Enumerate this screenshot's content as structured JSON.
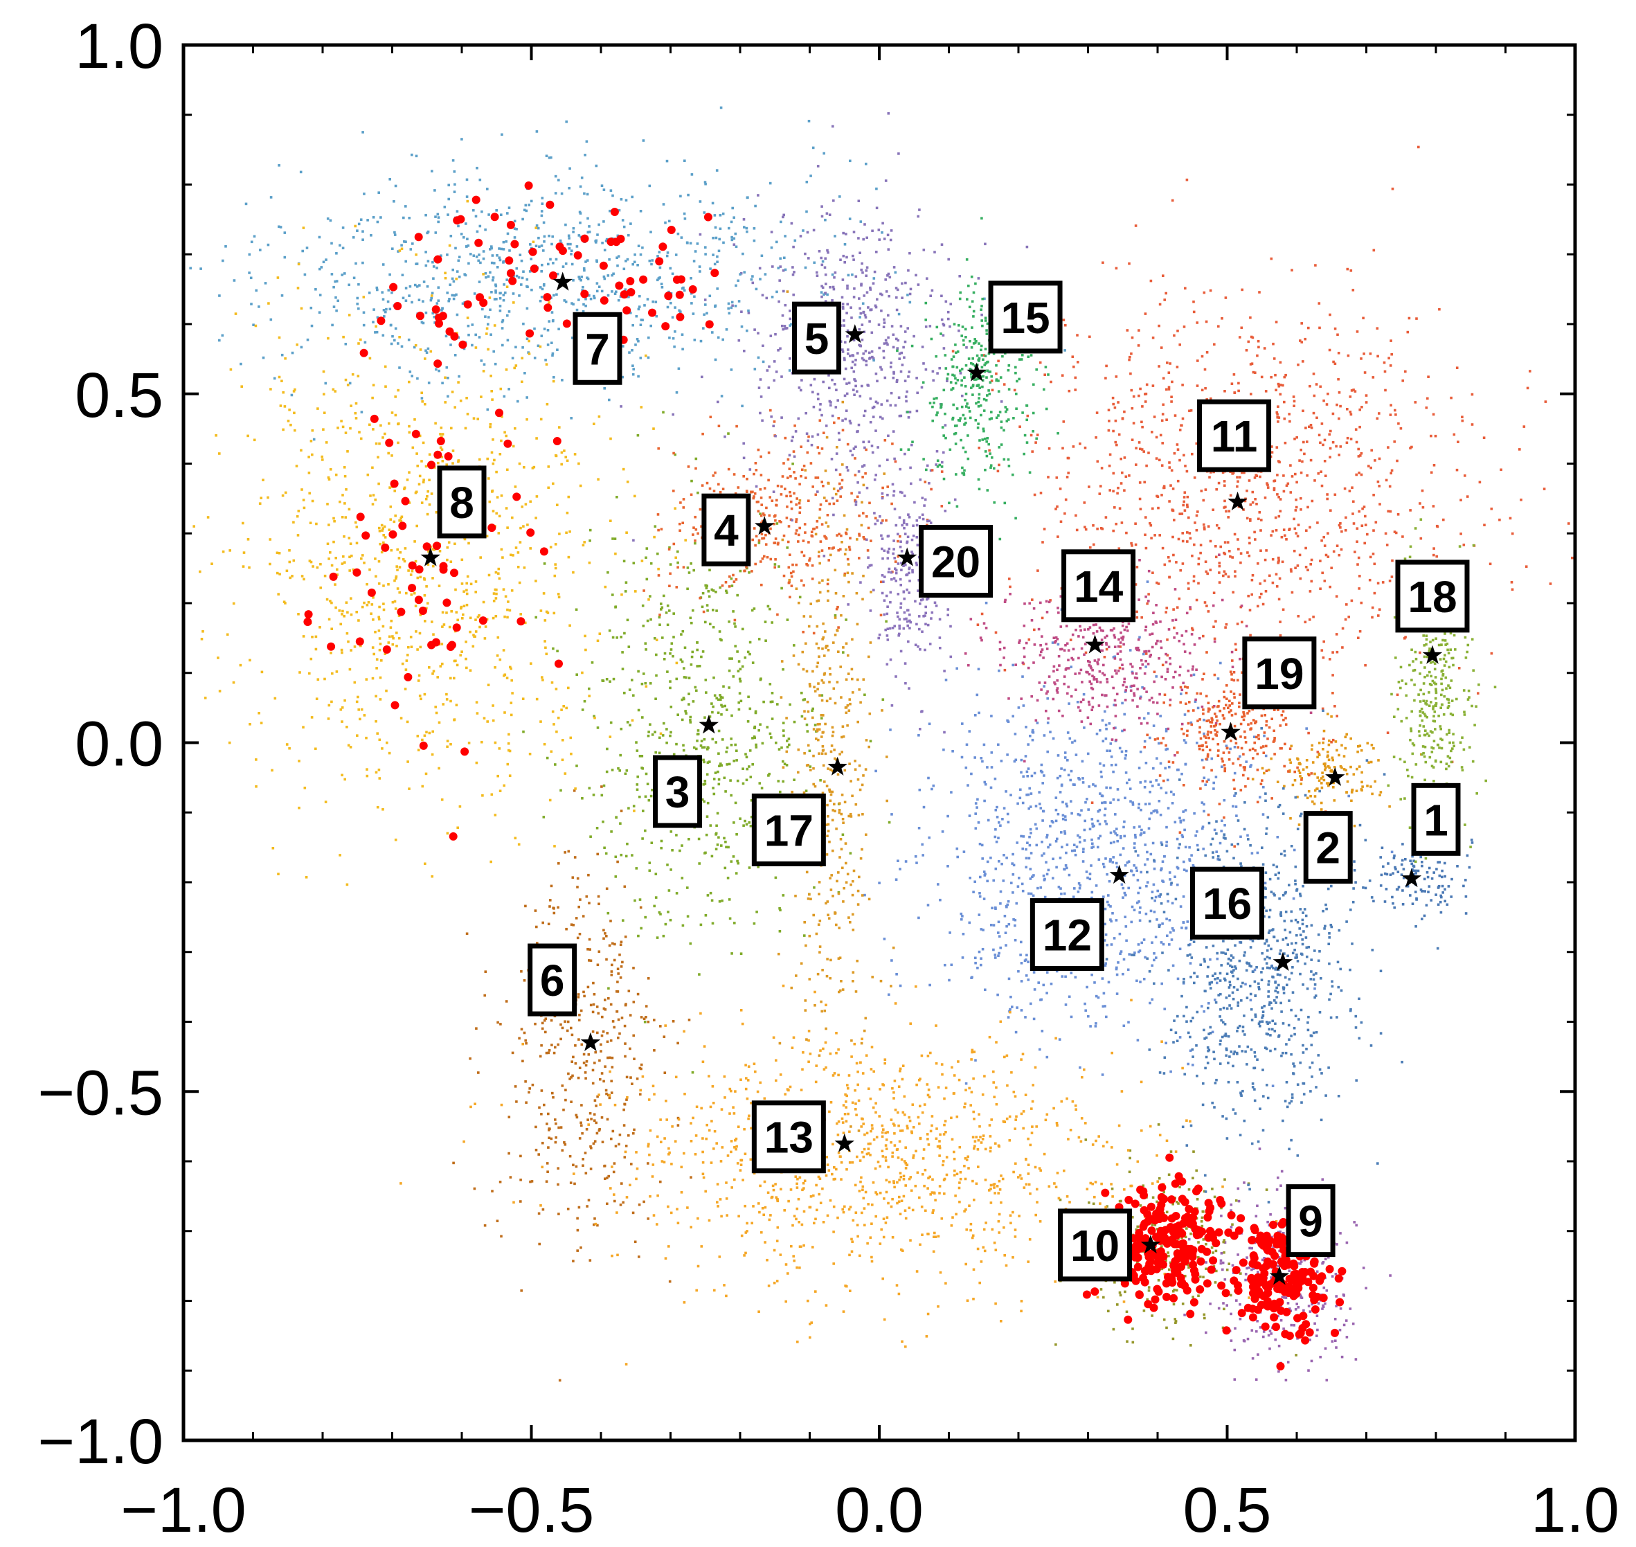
{
  "chart_data": {
    "type": "scatter",
    "title": "",
    "xlabel": "",
    "ylabel": "",
    "xlim": [
      -1.0,
      1.0
    ],
    "ylim": [
      -1.0,
      1.0
    ],
    "xticks": [
      -1.0,
      -0.5,
      0.0,
      0.5,
      1.0
    ],
    "yticks": [
      -1.0,
      -0.5,
      0.0,
      0.5,
      1.0
    ],
    "xtick_labels": [
      "−1.0",
      "−0.5",
      "0.0",
      "0.5",
      "1.0"
    ],
    "ytick_labels": [
      "−1.0",
      "−0.5",
      "0.0",
      "0.5",
      "1.0"
    ],
    "grid": false,
    "highlight_color": "#ff0000",
    "clusters": [
      {
        "label": "1",
        "color": "#4b79b5",
        "center": [
          0.77,
          -0.19
        ],
        "spread": [
          0.04,
          0.03
        ],
        "count": 120,
        "highlighted": false
      },
      {
        "label": "2",
        "color": "#e29a1a",
        "center": [
          0.65,
          -0.04
        ],
        "spread": [
          0.04,
          0.03
        ],
        "count": 140,
        "highlighted": false
      },
      {
        "label": "3",
        "color": "#80ab2a",
        "center": [
          -0.25,
          0.02
        ],
        "spread": [
          0.09,
          0.15
        ],
        "count": 650,
        "highlighted": false
      },
      {
        "label": "4",
        "color": "#e86530",
        "center": [
          -0.14,
          0.32
        ],
        "spread": [
          0.08,
          0.06
        ],
        "count": 360,
        "highlighted": false
      },
      {
        "label": "5",
        "color": "#8874b9",
        "center": [
          -0.04,
          0.57
        ],
        "spread": [
          0.08,
          0.1
        ],
        "count": 520,
        "highlighted": false
      },
      {
        "label": "6",
        "color": "#c06e1b",
        "center": [
          -0.43,
          -0.46
        ],
        "spread": [
          0.06,
          0.14
        ],
        "count": 420,
        "highlighted": false
      },
      {
        "label": "7",
        "color": "#5ca0c9",
        "center": [
          -0.48,
          0.67
        ],
        "spread": [
          0.2,
          0.08
        ],
        "count": 900,
        "highlighted": true,
        "highlight_count": 70
      },
      {
        "label": "8",
        "color": "#f3bb1f",
        "center": [
          -0.65,
          0.27
        ],
        "spread": [
          0.14,
          0.17
        ],
        "count": 950,
        "highlighted": true,
        "highlight_count": 60
      },
      {
        "label": "9",
        "color": "#9a65b0",
        "center": [
          0.58,
          -0.77
        ],
        "spread": [
          0.05,
          0.06
        ],
        "count": 300,
        "highlighted": true,
        "highlight_count": 170
      },
      {
        "label": "10",
        "color": "#95972a",
        "center": [
          0.41,
          -0.72
        ],
        "spread": [
          0.06,
          0.06
        ],
        "count": 260,
        "highlighted": true,
        "highlight_count": 210
      },
      {
        "label": "11",
        "color": "#e85d3a",
        "center": [
          0.52,
          0.36
        ],
        "spread": [
          0.17,
          0.14
        ],
        "count": 1100,
        "highlighted": false
      },
      {
        "label": "12",
        "color": "#6a8fd6",
        "center": [
          0.3,
          -0.16
        ],
        "spread": [
          0.12,
          0.12
        ],
        "count": 1000,
        "highlighted": false
      },
      {
        "label": "13",
        "color": "#f5a727",
        "center": [
          -0.02,
          -0.6
        ],
        "spread": [
          0.19,
          0.09
        ],
        "count": 1000,
        "highlighted": false
      },
      {
        "label": "14",
        "color": "#bf4b84",
        "center": [
          0.32,
          0.12
        ],
        "spread": [
          0.08,
          0.05
        ],
        "count": 380,
        "highlighted": false
      },
      {
        "label": "15",
        "color": "#37af61",
        "center": [
          0.14,
          0.51
        ],
        "spread": [
          0.04,
          0.08
        ],
        "count": 320,
        "highlighted": false
      },
      {
        "label": "16",
        "color": "#4c7db6",
        "center": [
          0.54,
          -0.32
        ],
        "spread": [
          0.07,
          0.12
        ],
        "count": 700,
        "highlighted": false
      },
      {
        "label": "17",
        "color": "#dd9a25",
        "center": [
          -0.07,
          -0.05
        ],
        "spread": [
          0.03,
          0.2
        ],
        "count": 380,
        "highlighted": false
      },
      {
        "label": "18",
        "color": "#8ab136",
        "center": [
          0.8,
          0.07
        ],
        "spread": [
          0.03,
          0.09
        ],
        "count": 300,
        "highlighted": false
      },
      {
        "label": "19",
        "color": "#e8602f",
        "center": [
          0.51,
          0.01
        ],
        "spread": [
          0.05,
          0.05
        ],
        "count": 260,
        "highlighted": false
      },
      {
        "label": "20",
        "color": "#8c74bc",
        "center": [
          0.04,
          0.24
        ],
        "spread": [
          0.03,
          0.07
        ],
        "count": 260,
        "highlighted": false
      }
    ],
    "stars": [
      {
        "cluster": "1",
        "x": 0.765,
        "y": -0.195
      },
      {
        "cluster": "2",
        "x": 0.655,
        "y": -0.05
      },
      {
        "cluster": "3",
        "x": -0.245,
        "y": 0.025
      },
      {
        "cluster": "4",
        "x": -0.165,
        "y": 0.31
      },
      {
        "cluster": "5",
        "x": -0.035,
        "y": 0.585
      },
      {
        "cluster": "6",
        "x": -0.415,
        "y": -0.43
      },
      {
        "cluster": "7",
        "x": -0.455,
        "y": 0.66
      },
      {
        "cluster": "8",
        "x": -0.645,
        "y": 0.265
      },
      {
        "cluster": "9",
        "x": 0.575,
        "y": -0.765
      },
      {
        "cluster": "10",
        "x": 0.39,
        "y": -0.72
      },
      {
        "cluster": "11",
        "x": 0.515,
        "y": 0.345
      },
      {
        "cluster": "12",
        "x": 0.345,
        "y": -0.19
      },
      {
        "cluster": "13",
        "x": -0.05,
        "y": -0.575
      },
      {
        "cluster": "14",
        "x": 0.31,
        "y": 0.14
      },
      {
        "cluster": "15",
        "x": 0.14,
        "y": 0.53
      },
      {
        "cluster": "16",
        "x": 0.58,
        "y": -0.315
      },
      {
        "cluster": "17",
        "x": -0.06,
        "y": -0.035
      },
      {
        "cluster": "18",
        "x": 0.795,
        "y": 0.125
      },
      {
        "cluster": "19",
        "x": 0.505,
        "y": 0.015
      },
      {
        "cluster": "20",
        "x": 0.04,
        "y": 0.265
      }
    ],
    "annotations": [
      {
        "text": "1",
        "x": 0.8,
        "y": -0.11
      },
      {
        "text": "2",
        "x": 0.645,
        "y": -0.15
      },
      {
        "text": "3",
        "x": -0.29,
        "y": -0.07
      },
      {
        "text": "4",
        "x": -0.22,
        "y": 0.305
      },
      {
        "text": "5",
        "x": -0.09,
        "y": 0.58
      },
      {
        "text": "6",
        "x": -0.47,
        "y": -0.34
      },
      {
        "text": "7",
        "x": -0.405,
        "y": 0.565
      },
      {
        "text": "8",
        "x": -0.6,
        "y": 0.345
      },
      {
        "text": "9",
        "x": 0.62,
        "y": -0.685
      },
      {
        "text": "10",
        "x": 0.31,
        "y": -0.72
      },
      {
        "text": "11",
        "x": 0.51,
        "y": 0.44
      },
      {
        "text": "12",
        "x": 0.27,
        "y": -0.275
      },
      {
        "text": "13",
        "x": -0.13,
        "y": -0.565
      },
      {
        "text": "14",
        "x": 0.315,
        "y": 0.225
      },
      {
        "text": "15",
        "x": 0.21,
        "y": 0.61
      },
      {
        "text": "16",
        "x": 0.5,
        "y": -0.23
      },
      {
        "text": "17",
        "x": -0.13,
        "y": -0.125
      },
      {
        "text": "18",
        "x": 0.795,
        "y": 0.21
      },
      {
        "text": "19",
        "x": 0.575,
        "y": 0.1
      },
      {
        "text": "20",
        "x": 0.11,
        "y": 0.26
      }
    ]
  }
}
